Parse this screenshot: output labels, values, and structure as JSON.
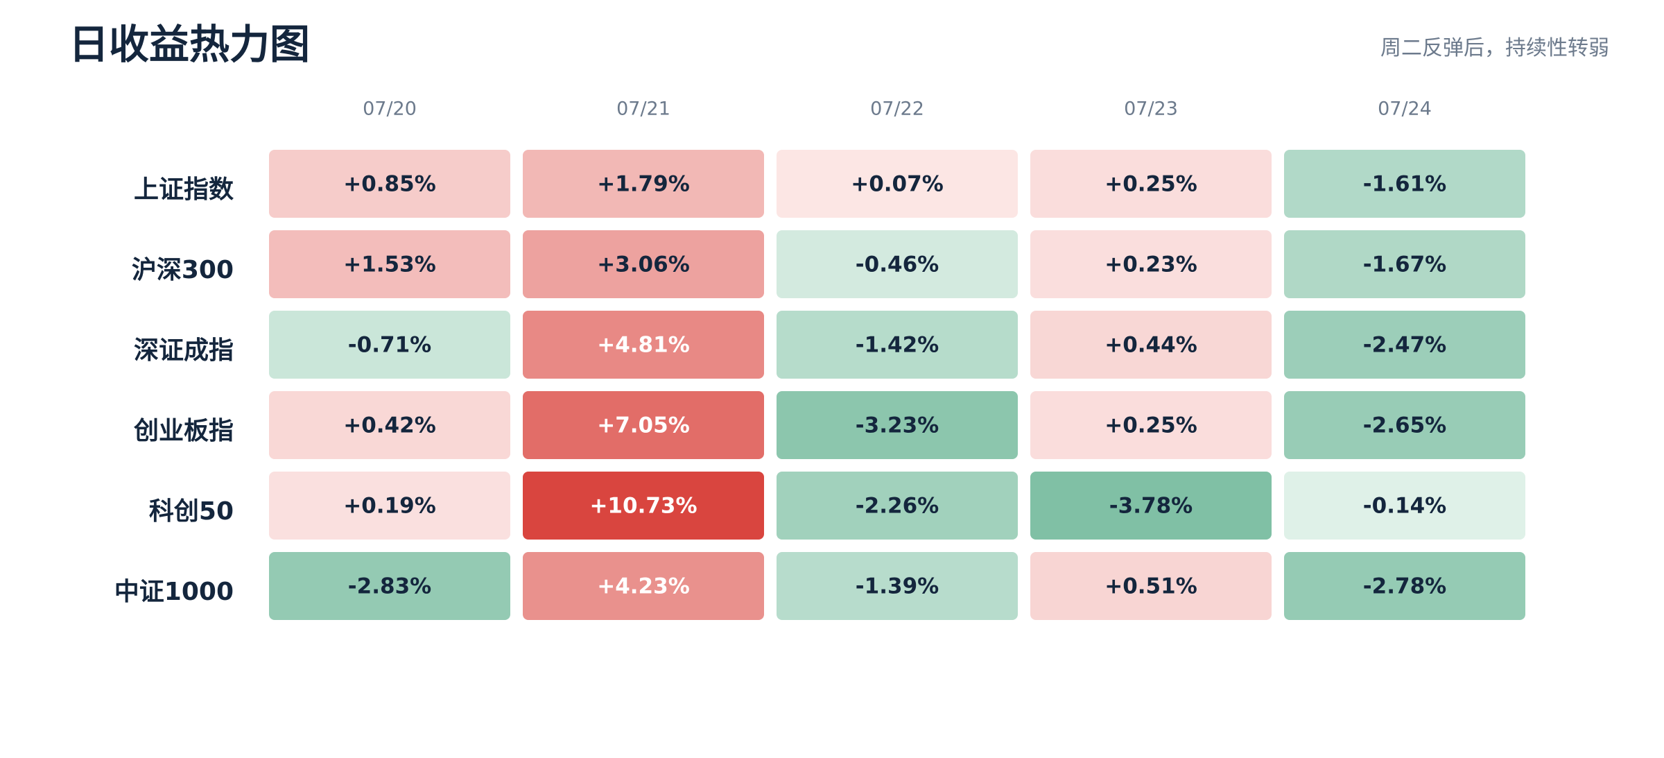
{
  "title": "日收益热力图",
  "subtitle": "周二反弹后，持续性转弱",
  "chart_data": {
    "type": "heatmap",
    "title": "日收益热力图",
    "subtitle": "周二反弹后，持续性转弱",
    "columns": [
      "07/20",
      "07/21",
      "07/22",
      "07/23",
      "07/24"
    ],
    "rows": [
      "上证指数",
      "沪深300",
      "深证成指",
      "创业板指",
      "科创50",
      "中证1000"
    ],
    "values": [
      [
        0.85,
        1.79,
        0.07,
        0.25,
        -1.61
      ],
      [
        1.53,
        3.06,
        -0.46,
        0.23,
        -1.67
      ],
      [
        -0.71,
        4.81,
        -1.42,
        0.44,
        -2.47
      ],
      [
        0.42,
        7.05,
        -3.23,
        0.25,
        -2.65
      ],
      [
        0.19,
        10.73,
        -2.26,
        -3.78,
        -0.14
      ],
      [
        -2.83,
        4.23,
        -1.39,
        0.51,
        -2.78
      ]
    ],
    "cell_labels": [
      [
        "+0.85%",
        "+1.79%",
        "+0.07%",
        "+0.25%",
        "-1.61%"
      ],
      [
        "+1.53%",
        "+3.06%",
        "-0.46%",
        "+0.23%",
        "-1.67%"
      ],
      [
        "-0.71%",
        "+4.81%",
        "-1.42%",
        "+0.44%",
        "-2.47%"
      ],
      [
        "+0.42%",
        "+7.05%",
        "-3.23%",
        "+0.25%",
        "-2.65%"
      ],
      [
        "+0.19%",
        "+10.73%",
        "-2.26%",
        "-3.78%",
        "-0.14%"
      ],
      [
        "-2.83%",
        "+4.23%",
        "-1.39%",
        "+0.51%",
        "-2.78%"
      ]
    ],
    "unit": "%",
    "colors": {
      "positive_light": "#fdeceb",
      "positive_dark": "#d9453f",
      "negative_light": "#e8f5ee",
      "negative_dark": "#80c0a5",
      "text_dark": "#14263d",
      "text_light": "#ffffff"
    },
    "color_scale_max_abs": {
      "positive": 10.73,
      "negative": 3.78
    },
    "grid": false,
    "legend": "none"
  }
}
